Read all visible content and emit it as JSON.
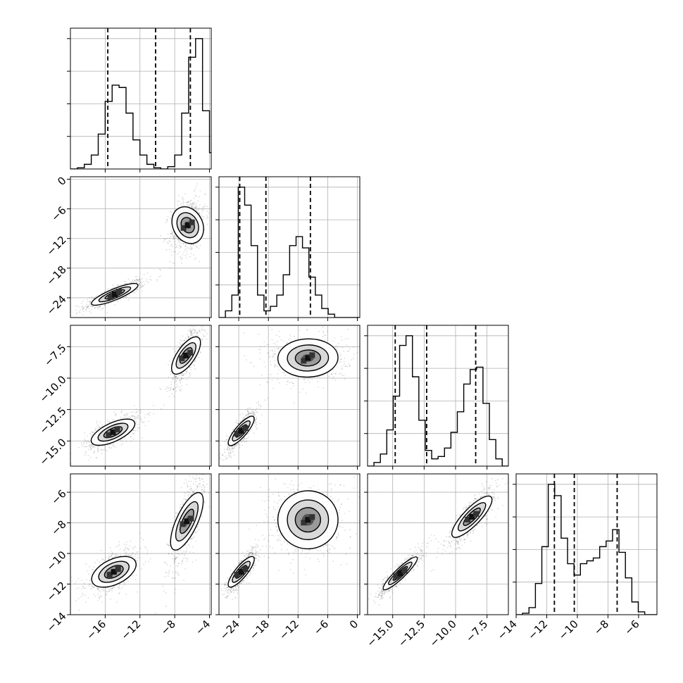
{
  "chart_data": {
    "type": "corner",
    "parameters": [
      {
        "range": [
          -20,
          -3.8
        ],
        "ticks": [
          -16,
          -12,
          -8,
          -4
        ],
        "labels": [
          "−16",
          "−12",
          "−8",
          "−4"
        ]
      },
      {
        "range": [
          -28,
          0.5
        ],
        "ticks": [
          -24,
          -18,
          -12,
          -6,
          0
        ],
        "labels": [
          "−24",
          "−18",
          "−12",
          "−6",
          "0"
        ]
      },
      {
        "range": [
          -17,
          -5.8
        ],
        "ticks": [
          -15.0,
          -12.5,
          -10.0,
          -7.5
        ],
        "labels": [
          "−15.0",
          "−12.5",
          "−10.0",
          "−7.5"
        ]
      },
      {
        "range": [
          -14,
          -4.8
        ],
        "ticks": [
          -14,
          -12,
          -10,
          -8,
          -6
        ],
        "labels": [
          "−14",
          "−12",
          "−10",
          "−8",
          "−6"
        ]
      }
    ],
    "histograms": [
      {
        "quantiles": [
          -15.7,
          -10.2,
          -6.2
        ],
        "edges_start": -20,
        "bin_width": 0.8,
        "counts": [
          0,
          1,
          4,
          12,
          30,
          58,
          72,
          70,
          48,
          25,
          12,
          4,
          1,
          0,
          2,
          12,
          48,
          96,
          112,
          50,
          14,
          0
        ]
      },
      {
        "quantiles": [
          -23.8,
          -18.5,
          -9.5
        ],
        "edges_start": -28,
        "bin_width": 1.3,
        "counts": [
          0,
          6,
          20,
          116,
          100,
          64,
          20,
          6,
          10,
          20,
          38,
          64,
          72,
          62,
          36,
          20,
          8,
          3,
          0,
          0,
          0,
          0
        ]
      },
      {
        "quantiles": [
          -14.8,
          -12.3,
          -8.4
        ],
        "edges_start": -17,
        "bin_width": 0.51,
        "counts": [
          0,
          3,
          10,
          30,
          58,
          100,
          108,
          74,
          38,
          13,
          6,
          8,
          15,
          28,
          45,
          68,
          80,
          82,
          52,
          22,
          6,
          0
        ]
      },
      {
        "quantiles": [
          -11.5,
          -10.2,
          -7.4
        ],
        "edges_start": -14,
        "bin_width": 0.42,
        "counts": [
          0,
          1,
          5,
          22,
          48,
          92,
          84,
          54,
          36,
          28,
          36,
          38,
          40,
          48,
          52,
          60,
          44,
          26,
          9,
          2,
          0,
          0
        ]
      }
    ],
    "pairs": [
      {
        "row": 1,
        "col": 0,
        "modes": [
          {
            "x": -14.9,
            "y": -23.3,
            "sx": 1.4,
            "sy": 1.2,
            "r": 0.85,
            "w": 0.5
          },
          {
            "x": -6.5,
            "y": -9.3,
            "sx": 0.8,
            "sy": 2.4,
            "r": 0.3,
            "w": 0.5
          }
        ]
      },
      {
        "row": 2,
        "col": 0,
        "modes": [
          {
            "x": -15.1,
            "y": -14.3,
            "sx": 1.3,
            "sy": 0.6,
            "r": 0.7,
            "w": 0.5
          },
          {
            "x": -6.7,
            "y": -8.2,
            "sx": 0.75,
            "sy": 1.0,
            "r": 0.75,
            "w": 0.5
          }
        ]
      },
      {
        "row": 3,
        "col": 0,
        "modes": [
          {
            "x": -15.0,
            "y": -11.2,
            "sx": 1.3,
            "sy": 0.6,
            "r": 0.6,
            "w": 0.5
          },
          {
            "x": -6.6,
            "y": -7.9,
            "sx": 0.8,
            "sy": 1.3,
            "r": 0.75,
            "w": 0.5
          }
        ]
      },
      {
        "row": 2,
        "col": 1,
        "modes": [
          {
            "x": -23.5,
            "y": -14.2,
            "sx": 1.3,
            "sy": 0.7,
            "r": 0.85,
            "w": 0.5
          },
          {
            "x": -10.0,
            "y": -8.4,
            "sx": 3.2,
            "sy": 0.8,
            "r": 0.05,
            "w": 0.5
          }
        ]
      },
      {
        "row": 3,
        "col": 1,
        "modes": [
          {
            "x": -23.5,
            "y": -11.2,
            "sx": 1.3,
            "sy": 0.6,
            "r": 0.85,
            "w": 0.5
          },
          {
            "x": -10.0,
            "y": -7.8,
            "sx": 3.2,
            "sy": 1.0,
            "r": 0.05,
            "w": 0.5
          }
        ]
      },
      {
        "row": 3,
        "col": 2,
        "modes": [
          {
            "x": -14.4,
            "y": -11.3,
            "sx": 0.7,
            "sy": 0.6,
            "r": 0.92,
            "w": 0.5
          },
          {
            "x": -8.7,
            "y": -7.6,
            "sx": 0.8,
            "sy": 0.8,
            "r": 0.85,
            "w": 0.5
          }
        ]
      }
    ]
  }
}
